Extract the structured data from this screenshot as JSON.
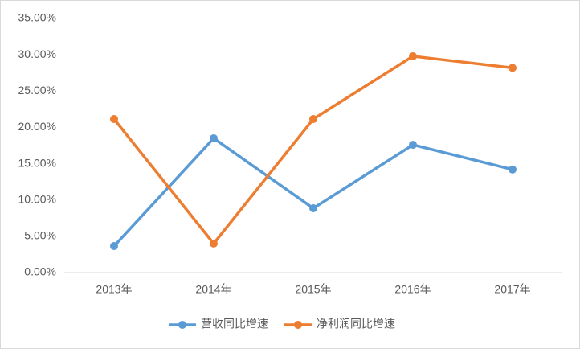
{
  "chart_data": {
    "type": "line",
    "categories": [
      "2013年",
      "2014年",
      "2015年",
      "2016年",
      "2017年"
    ],
    "series": [
      {
        "name": "营收同比增速",
        "color": "#5b9bd5",
        "values": [
          3.65,
          18.5,
          8.86,
          17.6,
          14.2
        ]
      },
      {
        "name": "净利润同比增速",
        "color": "#ed7d31",
        "values": [
          21.15,
          4.0,
          21.15,
          29.8,
          28.2
        ]
      }
    ],
    "ylim": [
      0,
      35
    ],
    "yticks": [
      {
        "value": 0,
        "label": "0.00%"
      },
      {
        "value": 5,
        "label": "5.00%"
      },
      {
        "value": 10,
        "label": "10.00%"
      },
      {
        "value": 15,
        "label": "15.00%"
      },
      {
        "value": 20,
        "label": "20.00%"
      },
      {
        "value": 25,
        "label": "25.00%"
      },
      {
        "value": 30,
        "label": "30.00%"
      },
      {
        "value": 35,
        "label": "35.00%"
      }
    ],
    "grid": false,
    "legend": "bottom"
  }
}
